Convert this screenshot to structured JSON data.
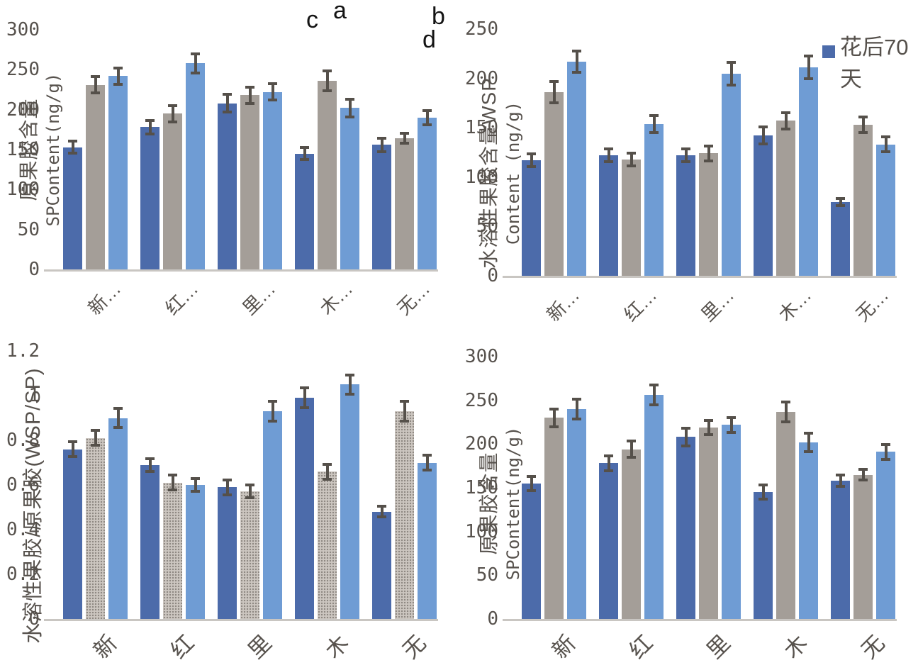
{
  "colors": {
    "series1": "#4c6baa",
    "series2": "#a49e98",
    "series3": "#6f9cd4",
    "series2_panel_c_stipple_base": "#ccc6c0",
    "error_bar": "#55504a",
    "axis_line": "#c9c6c2",
    "tick_text": "#57524d",
    "panel_letter": "#141414"
  },
  "legend": {
    "label": "花后70天",
    "line1": "花后70",
    "line2": "天",
    "swatch_color": "#4c6baa",
    "position": "top-right-of-panel-b"
  },
  "chart_data": [
    {
      "panel_label": "a",
      "type": "bar",
      "ylabel_line1": "原果胶含量",
      "ylabel_line2": "SPContent(ng/g)",
      "ylim": [
        0,
        300
      ],
      "yticks": [
        0,
        50,
        100,
        150,
        200,
        250,
        300
      ],
      "grid": false,
      "categories": [
        "新…",
        "红…",
        "里…",
        "木…",
        "无…"
      ],
      "series": [
        {
          "name": "花后70天",
          "values": [
            153,
            178,
            208,
            145,
            156
          ],
          "errors": [
            9,
            10,
            13,
            9,
            10
          ]
        },
        {
          "name": "",
          "values": [
            231,
            195,
            218,
            236,
            164
          ],
          "errors": [
            12,
            12,
            12,
            14,
            8
          ]
        },
        {
          "name": "",
          "values": [
            242,
            258,
            222,
            202,
            190
          ],
          "errors": [
            12,
            14,
            12,
            13,
            11
          ]
        }
      ]
    },
    {
      "panel_label": "b",
      "type": "bar",
      "ylabel_line1": "水溶性果胶含量WSP",
      "ylabel_line2": "Content (ng/g)",
      "ylim": [
        0,
        250
      ],
      "yticks": [
        0,
        50,
        100,
        150,
        200,
        250
      ],
      "grid": false,
      "categories": [
        "新…",
        "红…",
        "里…",
        "木…",
        "无…"
      ],
      "series": [
        {
          "name": "花后70天",
          "values": [
            117,
            122,
            122,
            142,
            75
          ],
          "errors": [
            8,
            8,
            8,
            10,
            5
          ]
        },
        {
          "name": "",
          "values": [
            186,
            118,
            124,
            157,
            153
          ],
          "errors": [
            12,
            8,
            9,
            10,
            9
          ]
        },
        {
          "name": "",
          "values": [
            217,
            154,
            205,
            211,
            133
          ],
          "errors": [
            12,
            10,
            13,
            13,
            9
          ]
        }
      ]
    },
    {
      "panel_label": "c",
      "type": "bar",
      "ylabel_line1": "水溶性果胶/原果胶(WSP/SP)",
      "ylabel_line2": "",
      "ylim": [
        0,
        1.2
      ],
      "yticks": [
        0,
        0.2,
        0.4,
        0.6,
        0.8,
        1,
        1.2
      ],
      "grid": false,
      "categories": [
        "新",
        "红",
        "里",
        "木",
        "无"
      ],
      "series": [
        {
          "name": "花后70天",
          "values": [
            0.76,
            0.69,
            0.59,
            0.99,
            0.48
          ],
          "errors": [
            0.04,
            0.035,
            0.04,
            0.05,
            0.03
          ]
        },
        {
          "name": "",
          "values": [
            0.81,
            0.61,
            0.57,
            0.66,
            0.93
          ],
          "errors": [
            0.04,
            0.04,
            0.035,
            0.04,
            0.05
          ]
        },
        {
          "name": "",
          "values": [
            0.9,
            0.6,
            0.93,
            1.05,
            0.7
          ],
          "errors": [
            0.05,
            0.035,
            0.05,
            0.05,
            0.04
          ]
        }
      ]
    },
    {
      "panel_label": "d",
      "type": "bar",
      "ylabel_line1": "原果胶含量",
      "ylabel_line2": "SPContent(ng/g)",
      "ylim": [
        0,
        300
      ],
      "yticks": [
        0,
        50,
        100,
        150,
        200,
        250,
        300
      ],
      "grid": false,
      "categories": [
        "新",
        "红",
        "里",
        "木",
        "无"
      ],
      "series": [
        {
          "name": "花后70天",
          "values": [
            155,
            178,
            208,
            145,
            158
          ],
          "errors": [
            10,
            10,
            12,
            10,
            8
          ]
        },
        {
          "name": "",
          "values": [
            230,
            194,
            219,
            237,
            165
          ],
          "errors": [
            12,
            11,
            10,
            13,
            8
          ]
        },
        {
          "name": "",
          "values": [
            240,
            256,
            222,
            202,
            191
          ],
          "errors": [
            13,
            13,
            10,
            12,
            10
          ]
        }
      ]
    }
  ]
}
